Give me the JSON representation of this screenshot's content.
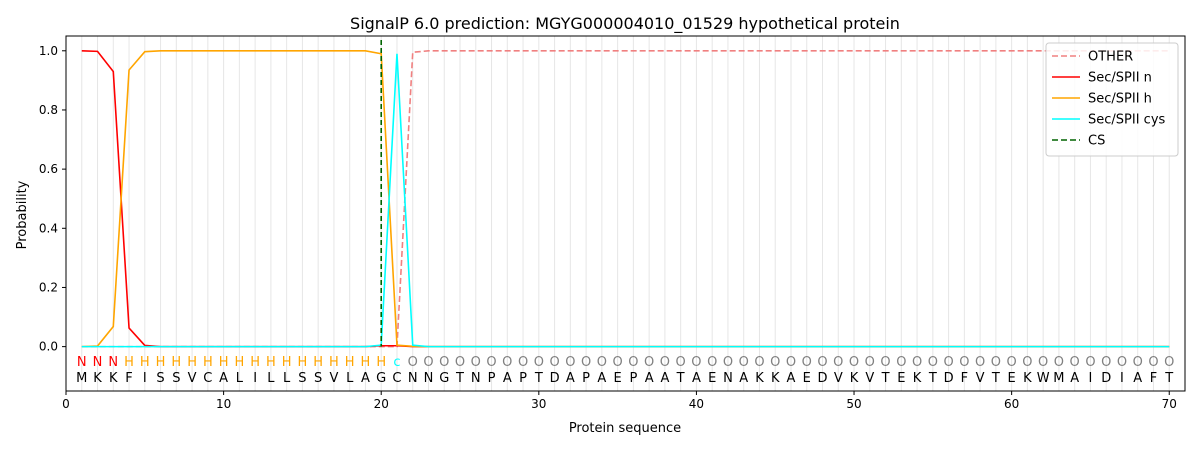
{
  "chart_data": {
    "type": "line",
    "title": "SignalP 6.0 prediction: MGYG000004010_01529 hypothetical protein",
    "xlabel": "Protein sequence",
    "ylabel": "Probability",
    "xlim": [
      0,
      71
    ],
    "ylim": [
      -0.15,
      1.05
    ],
    "x_ticks": [
      0,
      10,
      20,
      30,
      40,
      50,
      60,
      70
    ],
    "y_ticks": [
      0.0,
      0.2,
      0.4,
      0.6,
      0.8,
      1.0
    ],
    "legend_position": "top-right",
    "grid": "vertical lines at each residue",
    "sequence": [
      "M",
      "K",
      "K",
      "F",
      "I",
      "S",
      "S",
      "V",
      "C",
      "A",
      "L",
      "I",
      "L",
      "L",
      "S",
      "S",
      "V",
      "L",
      "A",
      "G",
      "C",
      "N",
      "N",
      "G",
      "T",
      "N",
      "P",
      "A",
      "P",
      "T",
      "D",
      "A",
      "P",
      "A",
      "E",
      "P",
      "A",
      "A",
      "T",
      "A",
      "E",
      "N",
      "A",
      "K",
      "K",
      "A",
      "E",
      "D",
      "V",
      "K",
      "V",
      "T",
      "E",
      "K",
      "T",
      "D",
      "F",
      "V",
      "T",
      "E",
      "K",
      "W",
      "M",
      "A",
      "I",
      "D",
      "I",
      "A",
      "F",
      "T"
    ],
    "labels": [
      "N",
      "N",
      "N",
      "H",
      "H",
      "H",
      "H",
      "H",
      "H",
      "H",
      "H",
      "H",
      "H",
      "H",
      "H",
      "H",
      "H",
      "H",
      "H",
      "H",
      "c",
      "O",
      "O",
      "O",
      "O",
      "O",
      "O",
      "O",
      "O",
      "O",
      "O",
      "O",
      "O",
      "O",
      "O",
      "O",
      "O",
      "O",
      "O",
      "O",
      "O",
      "O",
      "O",
      "O",
      "O",
      "O",
      "O",
      "O",
      "O",
      "O",
      "O",
      "O",
      "O",
      "O",
      "O",
      "O",
      "O",
      "O",
      "O",
      "O",
      "O",
      "O",
      "O",
      "O",
      "O",
      "O",
      "O",
      "O",
      "O",
      "O"
    ],
    "label_colors": {
      "N": "#ff0000",
      "H": "#ffa500",
      "c": "#00ffff",
      "O": "#808080"
    },
    "series": [
      {
        "name": "OTHER",
        "color": "#f08080",
        "dash": "dashed",
        "values": [
          0,
          0,
          0,
          0,
          0,
          0,
          0,
          0,
          0,
          0,
          0,
          0,
          0,
          0,
          0,
          0,
          0,
          0,
          0,
          0,
          0,
          0.995,
          1,
          1,
          1,
          1,
          1,
          1,
          1,
          1,
          1,
          1,
          1,
          1,
          1,
          1,
          1,
          1,
          1,
          1,
          1,
          1,
          1,
          1,
          1,
          1,
          1,
          1,
          1,
          1,
          1,
          1,
          1,
          1,
          1,
          1,
          1,
          1,
          1,
          1,
          1,
          1,
          1,
          1,
          1,
          1,
          1,
          1,
          1,
          1
        ]
      },
      {
        "name": "Sec/SPII n",
        "color": "#ff0000",
        "dash": "solid",
        "values": [
          1.0,
          0.998,
          0.93,
          0.063,
          0.004,
          0,
          0,
          0,
          0,
          0,
          0,
          0,
          0,
          0,
          0,
          0,
          0,
          0,
          0,
          0.003,
          0.003,
          0,
          0,
          0,
          0,
          0,
          0,
          0,
          0,
          0,
          0,
          0,
          0,
          0,
          0,
          0,
          0,
          0,
          0,
          0,
          0,
          0,
          0,
          0,
          0,
          0,
          0,
          0,
          0,
          0,
          0,
          0,
          0,
          0,
          0,
          0,
          0,
          0,
          0,
          0,
          0,
          0,
          0,
          0,
          0,
          0,
          0,
          0,
          0,
          0
        ]
      },
      {
        "name": "Sec/SPII h",
        "color": "#ffa500",
        "dash": "solid",
        "values": [
          0,
          0.002,
          0.068,
          0.935,
          0.997,
          1,
          1,
          1,
          1,
          1,
          1,
          1,
          1,
          1,
          1,
          1,
          1,
          1,
          1,
          0.99,
          0.005,
          0.001,
          0,
          0,
          0,
          0,
          0,
          0,
          0,
          0,
          0,
          0,
          0,
          0,
          0,
          0,
          0,
          0,
          0,
          0,
          0,
          0,
          0,
          0,
          0,
          0,
          0,
          0,
          0,
          0,
          0,
          0,
          0,
          0,
          0,
          0,
          0,
          0,
          0,
          0,
          0,
          0,
          0,
          0,
          0,
          0,
          0,
          0,
          0,
          0
        ]
      },
      {
        "name": "Sec/SPII cys",
        "color": "#00ffff",
        "dash": "solid",
        "values": [
          0,
          0,
          0,
          0,
          0,
          0,
          0,
          0,
          0,
          0,
          0,
          0,
          0,
          0,
          0,
          0,
          0,
          0,
          0,
          0.005,
          0.99,
          0.005,
          0,
          0,
          0,
          0,
          0,
          0,
          0,
          0,
          0,
          0,
          0,
          0,
          0,
          0,
          0,
          0,
          0,
          0,
          0,
          0,
          0,
          0,
          0,
          0,
          0,
          0,
          0,
          0,
          0,
          0,
          0,
          0,
          0,
          0,
          0,
          0,
          0,
          0,
          0,
          0,
          0,
          0,
          0,
          0,
          0,
          0,
          0,
          0
        ]
      }
    ],
    "cs": {
      "name": "CS",
      "x": 20,
      "color": "#006400",
      "dash": "dashed"
    }
  }
}
